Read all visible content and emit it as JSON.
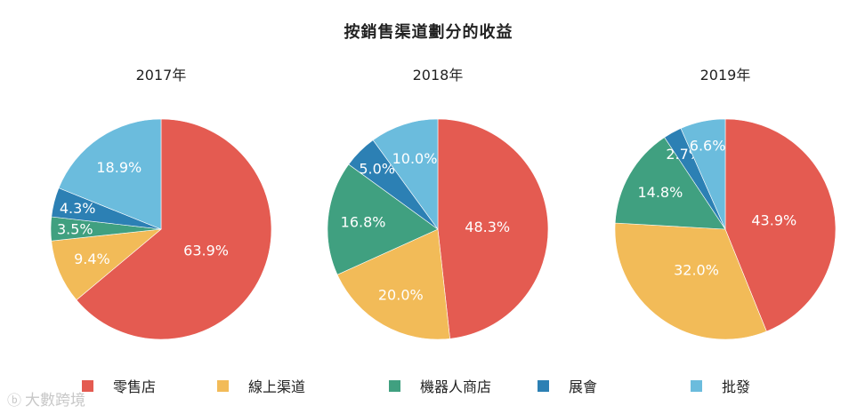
{
  "title": "按銷售渠道劃分的收益",
  "watermark": "大數跨境",
  "colors": {
    "零售店": "#e45b51",
    "線上渠道": "#f2bb58",
    "機器人商店": "#40a080",
    "展會": "#2c80b4",
    "批發": "#6bbcdd"
  },
  "chart_data": [
    {
      "type": "pie",
      "title": "2017年",
      "labels": [
        "零售店",
        "線上渠道",
        "機器人商店",
        "展會",
        "批發"
      ],
      "values": [
        63.9,
        9.4,
        3.5,
        4.3,
        18.9
      ],
      "value_labels": [
        "63.9%",
        "9.4%",
        "3.5%",
        "4.3%",
        "18.9%"
      ]
    },
    {
      "type": "pie",
      "title": "2018年",
      "labels": [
        "零售店",
        "線上渠道",
        "機器人商店",
        "展會",
        "批發"
      ],
      "values": [
        48.3,
        20.0,
        16.8,
        5.0,
        10.0
      ],
      "value_labels": [
        "48.3%",
        "20.0%",
        "16.8%",
        "5.0%",
        "10.0%"
      ]
    },
    {
      "type": "pie",
      "title": "2019年",
      "labels": [
        "零售店",
        "線上渠道",
        "機器人商店",
        "展會",
        "批發"
      ],
      "values": [
        43.9,
        32.0,
        14.8,
        2.7,
        6.6
      ],
      "value_labels": [
        "43.9%",
        "32.0%",
        "14.8%",
        "2.7%",
        "6.6%"
      ]
    }
  ],
  "legend": {
    "position": "bottom",
    "items": [
      "零售店",
      "線上渠道",
      "機器人商店",
      "展會",
      "批發"
    ]
  }
}
